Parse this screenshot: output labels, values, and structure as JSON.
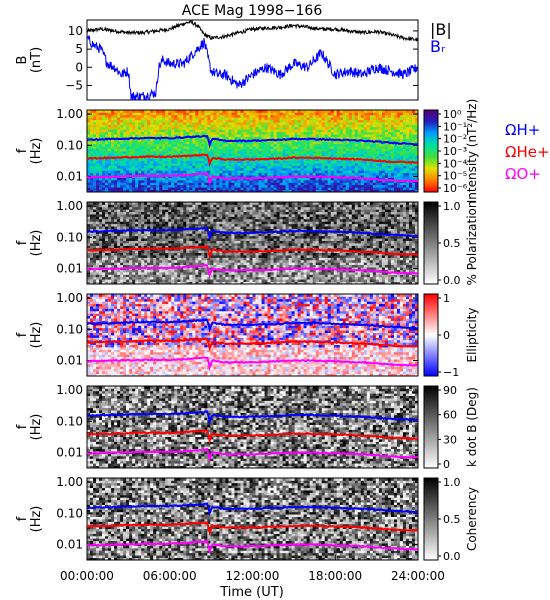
{
  "chart_data": {
    "type": "line",
    "title": "ACE Mag 1998−166",
    "xlabel": "Time (UT)",
    "x_ticks": [
      "00:00:00",
      "06:00:00",
      "12:00:00",
      "18:00:00",
      "24:00:00"
    ],
    "x_range_hours": [
      0,
      24
    ],
    "panels": [
      {
        "id": "bfield",
        "type": "line",
        "ylabel": "B",
        "yunit": "(nT)",
        "ylim": [
          -9,
          13
        ],
        "yticks": [
          "−5",
          "0",
          "5",
          "10"
        ],
        "legend": [
          "|B|",
          "Bᵣ"
        ],
        "legend_colors": [
          "#000000",
          "#0000ff"
        ],
        "series": [
          {
            "name": "|B|",
            "color": "#000000",
            "x": [
              0,
              1,
              2,
              3,
              4,
              5,
              6,
              7,
              7.5,
              8,
              8.5,
              9,
              10,
              11,
              12,
              13,
              14,
              15,
              16,
              17,
              18,
              19,
              20,
              21,
              22,
              23,
              24
            ],
            "y": [
              10,
              10.5,
              10,
              9.5,
              9.5,
              10,
              10.5,
              12,
              12.5,
              11.5,
              9,
              8,
              8.5,
              9.5,
              10.5,
              10.8,
              11,
              11.5,
              11,
              10.5,
              10.5,
              10,
              9.5,
              9.8,
              9,
              8,
              7.5
            ]
          },
          {
            "name": "B_R",
            "color": "#0000ff",
            "x": [
              0,
              0.5,
              1,
              1.5,
              2,
              2.5,
              3,
              3.2,
              3.5,
              4,
              5,
              5.2,
              5.5,
              6,
              7,
              8,
              8.5,
              8.8,
              9,
              9.5,
              10,
              11,
              12,
              13,
              14,
              15,
              16,
              17,
              18,
              19,
              20,
              21,
              22,
              23,
              24
            ],
            "y": [
              8,
              6,
              5,
              1,
              0,
              -2,
              -1,
              -8,
              -8,
              -8,
              -7,
              0,
              2,
              1,
              1,
              5,
              7,
              2,
              -1,
              -2,
              -2,
              -5,
              -2,
              0,
              -2,
              1,
              0,
              4,
              -2,
              -1,
              -2,
              0,
              -1,
              -2,
              0
            ]
          }
        ]
      },
      {
        "id": "intensity",
        "type": "heatmap",
        "ylabel": "f",
        "yunit": "(Hz)",
        "yticks": [
          "1.00",
          "0.10",
          "0.01"
        ],
        "colorbar_label": "Intensity (nT²/Hz)",
        "colorbar_ticks": [
          "10⁰",
          "10⁻¹",
          "10⁻²",
          "10⁻³",
          "10⁻⁴",
          "10⁻⁵",
          "10⁻⁶"
        ],
        "colorbar_colors": [
          "#5a0070",
          "#2020c0",
          "#00a0ff",
          "#00e0a0",
          "#40e040",
          "#e0e000",
          "#ff8000",
          "#ff0000"
        ]
      },
      {
        "id": "polarization",
        "type": "heatmap",
        "ylabel": "f",
        "yunit": "(Hz)",
        "yticks": [
          "1.00",
          "0.10",
          "0.01"
        ],
        "colorbar_label": "% Polarization",
        "colorbar_ticks": [
          "1.0",
          "0.5",
          "0.0"
        ],
        "colorbar_colors": [
          "#000000",
          "#ffffff"
        ]
      },
      {
        "id": "ellipticity",
        "type": "heatmap",
        "ylabel": "f",
        "yunit": "(Hz)",
        "yticks": [
          "1.00",
          "0.10",
          "0.01"
        ],
        "colorbar_label": "Ellipticity",
        "colorbar_ticks": [
          "1",
          "0",
          "−1"
        ],
        "colorbar_colors": [
          "#ff0000",
          "#ffffff",
          "#0000ff"
        ]
      },
      {
        "id": "kdotb",
        "type": "heatmap",
        "ylabel": "f",
        "yunit": "(Hz)",
        "yticks": [
          "1.00",
          "0.10",
          "0.01"
        ],
        "colorbar_label": "k dot B (Deg)",
        "colorbar_ticks": [
          "90",
          "60",
          "30",
          "0"
        ],
        "colorbar_colors": [
          "#000000",
          "#ffffff"
        ]
      },
      {
        "id": "coherency",
        "type": "heatmap",
        "ylabel": "f",
        "yunit": "(Hz)",
        "yticks": [
          "1.00",
          "0.10",
          "0.01"
        ],
        "colorbar_label": "Coherency",
        "colorbar_ticks": [
          "1.0",
          "0.5",
          "0.0"
        ],
        "colorbar_colors": [
          "#000000",
          "#ffffff"
        ]
      }
    ],
    "gyrofrequency_lines": [
      {
        "name": "ΩH+",
        "color": "#0000ff",
        "x": [
          0,
          2,
          4,
          6,
          7,
          8,
          8.7,
          8.9,
          9.1,
          10,
          12,
          14,
          15,
          16,
          18,
          20,
          22,
          24
        ],
        "f": [
          0.15,
          0.16,
          0.17,
          0.17,
          0.18,
          0.19,
          0.2,
          0.1,
          0.16,
          0.14,
          0.14,
          0.15,
          0.16,
          0.16,
          0.15,
          0.14,
          0.12,
          0.11
        ]
      },
      {
        "name": "ΩHe+",
        "color": "#ff0000",
        "x": [
          0,
          2,
          4,
          6,
          7,
          8,
          8.7,
          8.9,
          9.1,
          10,
          12,
          14,
          15,
          16,
          18,
          20,
          22,
          24
        ],
        "f": [
          0.038,
          0.04,
          0.043,
          0.043,
          0.045,
          0.048,
          0.05,
          0.025,
          0.04,
          0.035,
          0.035,
          0.038,
          0.04,
          0.04,
          0.038,
          0.035,
          0.03,
          0.028
        ]
      },
      {
        "name": "ΩO+",
        "color": "#ff00ff",
        "x": [
          0,
          2,
          4,
          6,
          7,
          8,
          8.7,
          8.9,
          9.1,
          10,
          12,
          14,
          15,
          16,
          18,
          20,
          22,
          24
        ],
        "f": [
          0.0095,
          0.01,
          0.0105,
          0.0105,
          0.011,
          0.012,
          0.0125,
          0.0063,
          0.01,
          0.0088,
          0.0088,
          0.0095,
          0.01,
          0.01,
          0.0095,
          0.0088,
          0.0075,
          0.007
        ]
      }
    ],
    "side_labels": [
      "ΩH+",
      "ΩHe+",
      "ΩO+"
    ]
  }
}
